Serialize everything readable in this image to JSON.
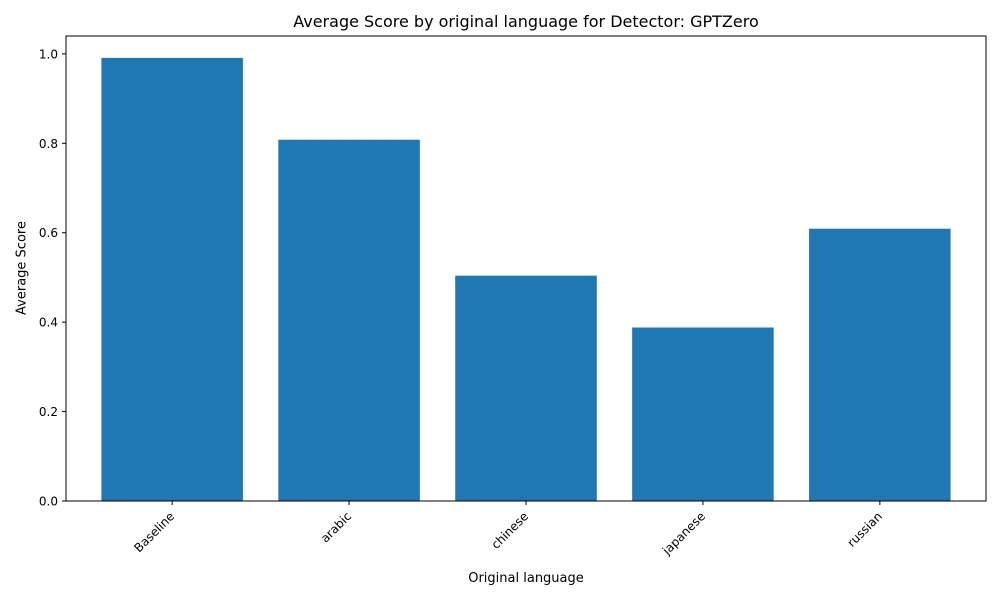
{
  "chart_data": {
    "type": "bar",
    "title": "Average Score by original language for Detector: GPTZero",
    "xlabel": "Original language",
    "ylabel": "Average Score",
    "categories": [
      "Baseline",
      "arabic",
      "chinese",
      "japanese",
      "russian"
    ],
    "values": [
      0.991,
      0.808,
      0.504,
      0.388,
      0.609
    ],
    "ylim": [
      0,
      1.04
    ],
    "yticks": [
      0.0,
      0.2,
      0.4,
      0.6,
      0.8,
      1.0
    ],
    "ytick_labels": [
      "0.0",
      "0.2",
      "0.4",
      "0.6",
      "0.8",
      "1.0"
    ],
    "xtick_rotation": 45,
    "grid": false,
    "legend": "none",
    "bar_color": "#1f77b4"
  }
}
